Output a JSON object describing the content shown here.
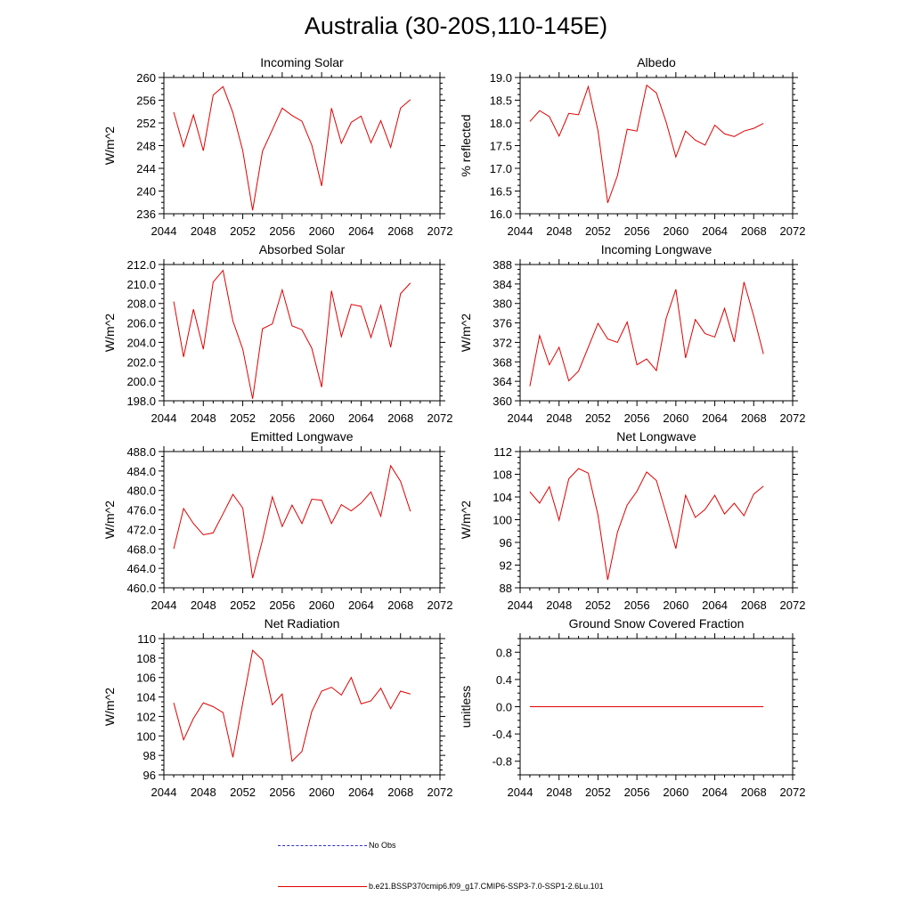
{
  "page": {
    "title": "Australia (30-20S,110-145E)",
    "line_color": "#e00000",
    "obs_color": "#3030c0"
  },
  "legend": {
    "obs_label": "No Obs",
    "model_label": "b.e21.BSSP370cmip6.f09_g17.CMIP6-SSP3-7.0-SSP1-2.6Lu.101"
  },
  "chart_data": [
    {
      "type": "line",
      "title": "Incoming Solar",
      "ylabel": "W/m^2",
      "xlim": [
        2044,
        2072
      ],
      "ylim": [
        236,
        260
      ],
      "xticks": [
        "2044",
        "2048",
        "2052",
        "2056",
        "2060",
        "2064",
        "2068",
        "2072"
      ],
      "yticks": [
        "236",
        "240",
        "244",
        "248",
        "252",
        "256",
        "260"
      ],
      "series": [
        {
          "x": [
            2045,
            2046,
            2047,
            2048,
            2049,
            2050,
            2051,
            2052,
            2053,
            2054,
            2055,
            2056,
            2057,
            2058,
            2059,
            2060,
            2061,
            2062,
            2063,
            2064,
            2065,
            2066,
            2067,
            2068,
            2069
          ],
          "values": [
            253.9,
            247.8,
            253.4,
            247.1,
            256.9,
            258.4,
            253.8,
            247.1,
            236.6,
            247.0,
            250.8,
            254.6,
            253.3,
            252.3,
            248.1,
            240.9,
            254.6,
            248.4,
            252.1,
            253.2,
            248.5,
            252.4,
            247.7,
            254.6,
            256.1
          ]
        }
      ]
    },
    {
      "type": "line",
      "title": "Albedo",
      "ylabel": "% reflected",
      "xlim": [
        2044,
        2072
      ],
      "ylim": [
        16.0,
        19.0
      ],
      "xticks": [
        "2044",
        "2048",
        "2052",
        "2056",
        "2060",
        "2064",
        "2068",
        "2072"
      ],
      "yticks": [
        "16.0",
        "16.5",
        "17.0",
        "17.5",
        "18.0",
        "18.5",
        "19.0"
      ],
      "series": [
        {
          "x": [
            2045,
            2046,
            2047,
            2048,
            2049,
            2050,
            2051,
            2052,
            2053,
            2054,
            2055,
            2056,
            2057,
            2058,
            2059,
            2060,
            2061,
            2062,
            2063,
            2064,
            2065,
            2066,
            2067,
            2068,
            2069
          ],
          "values": [
            18.03,
            18.27,
            18.14,
            17.71,
            18.21,
            18.18,
            18.8,
            17.83,
            16.24,
            16.84,
            17.86,
            17.82,
            18.83,
            18.66,
            18.02,
            17.25,
            17.82,
            17.62,
            17.51,
            17.95,
            17.76,
            17.7,
            17.82,
            17.88,
            17.99
          ]
        }
      ]
    },
    {
      "type": "line",
      "title": "Absorbed Solar",
      "ylabel": "W/m^2",
      "xlim": [
        2044,
        2072
      ],
      "ylim": [
        198.0,
        212.0
      ],
      "xticks": [
        "2044",
        "2048",
        "2052",
        "2056",
        "2060",
        "2064",
        "2068",
        "2072"
      ],
      "yticks": [
        "198.0",
        "200.0",
        "202.0",
        "204.0",
        "206.0",
        "208.0",
        "210.0",
        "212.0"
      ],
      "series": [
        {
          "x": [
            2045,
            2046,
            2047,
            2048,
            2049,
            2050,
            2051,
            2052,
            2053,
            2054,
            2055,
            2056,
            2057,
            2058,
            2059,
            2060,
            2061,
            2062,
            2063,
            2064,
            2065,
            2066,
            2067,
            2068,
            2069
          ],
          "values": [
            208.2,
            202.5,
            207.4,
            203.3,
            210.2,
            211.4,
            206.2,
            203.3,
            198.2,
            205.4,
            205.9,
            209.4,
            205.7,
            205.3,
            203.4,
            199.4,
            209.3,
            204.6,
            207.9,
            207.7,
            204.5,
            207.8,
            203.5,
            209.0,
            210.1
          ]
        }
      ]
    },
    {
      "type": "line",
      "title": "Incoming Longwave",
      "ylabel": "W/m^2",
      "xlim": [
        2044,
        2072
      ],
      "ylim": [
        360,
        388
      ],
      "xticks": [
        "2044",
        "2048",
        "2052",
        "2056",
        "2060",
        "2064",
        "2068",
        "2072"
      ],
      "yticks": [
        "360",
        "364",
        "368",
        "372",
        "376",
        "380",
        "384",
        "388"
      ],
      "series": [
        {
          "x": [
            2045,
            2046,
            2047,
            2048,
            2049,
            2050,
            2051,
            2052,
            2053,
            2054,
            2055,
            2056,
            2057,
            2058,
            2059,
            2060,
            2061,
            2062,
            2063,
            2064,
            2065,
            2066,
            2067,
            2068,
            2069
          ],
          "values": [
            363.0,
            373.4,
            367.4,
            371.0,
            364.1,
            366.1,
            371.0,
            375.9,
            372.7,
            372.0,
            376.2,
            367.4,
            368.6,
            366.2,
            376.9,
            382.9,
            368.8,
            376.7,
            373.8,
            373.1,
            379.0,
            372.1,
            384.4,
            377.4,
            369.6
          ]
        }
      ]
    },
    {
      "type": "line",
      "title": "Emitted Longwave",
      "ylabel": "W/m^2",
      "xlim": [
        2044,
        2072
      ],
      "ylim": [
        460.0,
        488.0
      ],
      "xticks": [
        "2044",
        "2048",
        "2052",
        "2056",
        "2060",
        "2064",
        "2068",
        "2072"
      ],
      "yticks": [
        "460.0",
        "464.0",
        "468.0",
        "472.0",
        "476.0",
        "480.0",
        "484.0",
        "488.0"
      ],
      "series": [
        {
          "x": [
            2045,
            2046,
            2047,
            2048,
            2049,
            2050,
            2051,
            2052,
            2053,
            2054,
            2055,
            2056,
            2057,
            2058,
            2059,
            2060,
            2061,
            2062,
            2063,
            2064,
            2065,
            2066,
            2067,
            2068,
            2069
          ],
          "values": [
            468.0,
            476.3,
            473.2,
            470.9,
            471.3,
            475.2,
            479.2,
            476.4,
            462.0,
            469.8,
            478.7,
            472.6,
            477.0,
            473.2,
            478.2,
            478.0,
            473.2,
            477.1,
            475.8,
            477.4,
            479.7,
            474.7,
            485.1,
            481.9,
            475.7
          ]
        }
      ]
    },
    {
      "type": "line",
      "title": "Net Longwave",
      "ylabel": "W/m^2",
      "xlim": [
        2044,
        2072
      ],
      "ylim": [
        88,
        112
      ],
      "xticks": [
        "2044",
        "2048",
        "2052",
        "2056",
        "2060",
        "2064",
        "2068",
        "2072"
      ],
      "yticks": [
        "88",
        "92",
        "96",
        "100",
        "104",
        "108",
        "112"
      ],
      "series": [
        {
          "x": [
            2045,
            2046,
            2047,
            2048,
            2049,
            2050,
            2051,
            2052,
            2053,
            2054,
            2055,
            2056,
            2057,
            2058,
            2059,
            2060,
            2061,
            2062,
            2063,
            2064,
            2065,
            2066,
            2067,
            2068,
            2069
          ],
          "values": [
            104.9,
            102.9,
            105.8,
            99.9,
            107.2,
            109.0,
            108.2,
            100.8,
            89.4,
            97.8,
            102.6,
            105.0,
            108.4,
            106.9,
            101.1,
            94.9,
            104.3,
            100.4,
            101.8,
            104.3,
            101.0,
            102.9,
            100.7,
            104.5,
            105.9
          ]
        }
      ]
    },
    {
      "type": "line",
      "title": "Net Radiation",
      "ylabel": "W/m^2",
      "xlim": [
        2044,
        2072
      ],
      "ylim": [
        96,
        110
      ],
      "xticks": [
        "2044",
        "2048",
        "2052",
        "2056",
        "2060",
        "2064",
        "2068",
        "2072"
      ],
      "yticks": [
        "96",
        "98",
        "100",
        "102",
        "104",
        "106",
        "108",
        "110"
      ],
      "series": [
        {
          "x": [
            2045,
            2046,
            2047,
            2048,
            2049,
            2050,
            2051,
            2052,
            2053,
            2054,
            2055,
            2056,
            2057,
            2058,
            2059,
            2060,
            2061,
            2062,
            2063,
            2064,
            2065,
            2066,
            2067,
            2068,
            2069
          ],
          "values": [
            103.4,
            99.6,
            101.8,
            103.4,
            103.0,
            102.4,
            97.8,
            103.4,
            108.8,
            107.8,
            103.2,
            104.3,
            97.4,
            98.4,
            102.5,
            104.6,
            105.0,
            104.2,
            106.0,
            103.3,
            103.6,
            104.9,
            102.8,
            104.6,
            104.3
          ]
        }
      ]
    },
    {
      "type": "line",
      "title": "Ground Snow Covered Fraction",
      "ylabel": "unitless",
      "xlim": [
        2044,
        2072
      ],
      "ylim": [
        -1.0,
        1.0
      ],
      "xticks": [
        "2044",
        "2048",
        "2052",
        "2056",
        "2060",
        "2064",
        "2068",
        "2072"
      ],
      "yticks": [
        "-0.8",
        "-0.4",
        "0.0",
        "0.4",
        "0.8"
      ],
      "ytick_values": [
        -0.8,
        -0.4,
        0.0,
        0.4,
        0.8
      ],
      "series": [
        {
          "x": [
            2045,
            2069
          ],
          "values": [
            0.0,
            0.0
          ]
        }
      ]
    }
  ]
}
